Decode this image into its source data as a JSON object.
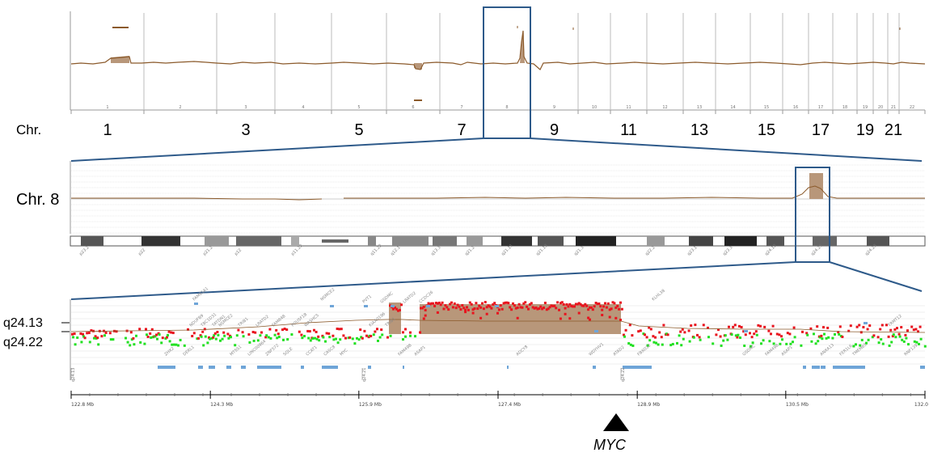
{
  "genome_panel": {
    "row_label": "Chr.",
    "tick_labels": [
      "1",
      "2",
      "3",
      "4",
      "5",
      "6",
      "7",
      "8",
      "9",
      "10",
      "11",
      "12",
      "13",
      "14",
      "15",
      "16",
      "17",
      "18",
      "19",
      "20",
      "21",
      "22"
    ],
    "big_labels": [
      "1",
      "3",
      "5",
      "7",
      "9",
      "11",
      "13",
      "15",
      "17",
      "19",
      "21"
    ]
  },
  "chromosome_panel": {
    "row_label": "Chr. 8",
    "band_labels": [
      "p23.2",
      "p22",
      "p21.2",
      "p12",
      "p11.22",
      "q11.22",
      "q12.1",
      "q13.3",
      "q21.2",
      "q21.11",
      "q21.13",
      "q21.3",
      "q22.2",
      "q23.1",
      "q23.3",
      "q24.12",
      "q24.21",
      "q24.23"
    ]
  },
  "detail_panel": {
    "row_label_top": "q24.13",
    "row_label_bottom": "q24.22",
    "band_marks": [
      "q24.13",
      "q24.21",
      "q24.22"
    ],
    "gene_labels": [
      "FAM91A1",
      "ZHX2",
      "DERL1",
      "TBC1D31",
      "NSMCE2",
      "TRIB1",
      "LRATD2",
      "FAM84B",
      "POU5F1B",
      "CCAT1",
      "CASC8",
      "MYC",
      "PVT1",
      "GSDMC",
      "FAM49B",
      "ASAP1",
      "ADCY8",
      "WDYHV1",
      "ATAD2",
      "FBXO32",
      "KLHL38",
      "ANXA13",
      "FER1L6",
      "TMEM65",
      "TRMT12",
      "RNF139",
      "NDUFB9",
      "TATDN1",
      "MTSS1",
      "LINC00964",
      "ZNF572",
      "SQLE",
      "WASHC5",
      "NSMCE2",
      "KIAA0196",
      "TRIB1",
      "LRATD2",
      "CCDC26",
      "GSDMC",
      "FAM49B",
      "ASAP1"
    ],
    "axis_unit": "Mb",
    "axis_labels": [
      "122.8 Mb",
      "124.3 Mb",
      "125.9 Mb",
      "127.4 Mb",
      "128.9 Mb",
      "130.5 Mb",
      "132.0"
    ]
  },
  "annotation": {
    "gene": "MYC"
  },
  "colors": {
    "trace": "#8B5A2B",
    "fill": "#B8977A",
    "box": "#2E5A8A",
    "gain": "#E8141E",
    "neutral": "#22E022",
    "gene_bar": "#6FA5D8"
  },
  "chart_data": [
    {
      "type": "line",
      "title": "",
      "x": [
        "1",
        "2",
        "3",
        "4",
        "5",
        "6",
        "7",
        "8",
        "9",
        "10",
        "11",
        "12",
        "13",
        "14",
        "15",
        "16",
        "17",
        "18",
        "19",
        "20",
        "21",
        "22"
      ],
      "series": [
        {
          "values": [
            0.02,
            0.0,
            0.0,
            0.0,
            0.0,
            -0.05,
            0.0,
            0.3,
            0.0,
            0.0,
            0.0,
            0.0,
            0.0,
            0.0,
            0.0,
            0.0,
            0.0,
            0.0,
            0.0,
            0.0,
            0.0,
            0.0
          ]
        }
      ],
      "highlight_chromosome": "8"
    },
    {
      "type": "line",
      "title": "",
      "x_range": [
        "p23.2",
        "q24.23"
      ],
      "highlight_band": "q24.21"
    },
    {
      "type": "scatter",
      "title": "",
      "xlim": [
        122.8,
        132.0
      ],
      "x_ticks": [
        122.8,
        124.3,
        125.9,
        127.4,
        128.9,
        130.5,
        132.0
      ],
      "gained_regions": [
        [
          126.3,
          126.45
        ],
        [
          126.6,
          128.2
        ]
      ],
      "marker_gene": "MYC",
      "marker_position": 128.7
    }
  ]
}
